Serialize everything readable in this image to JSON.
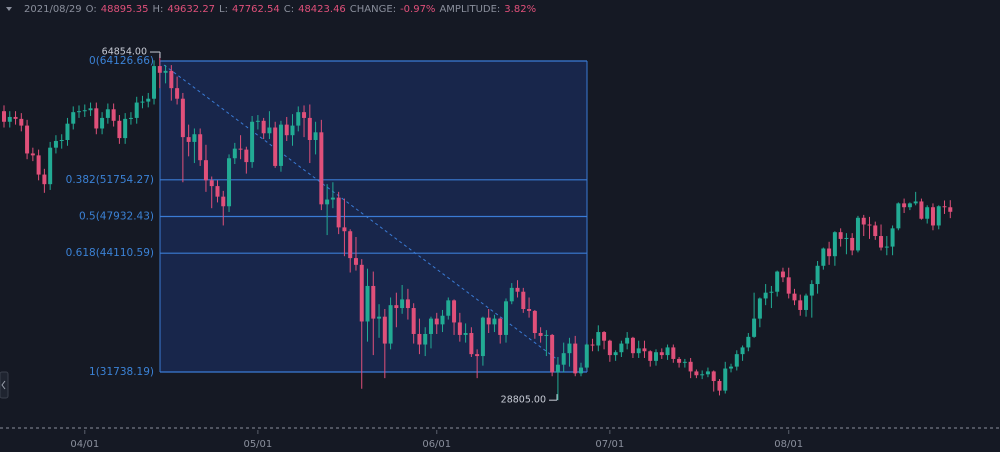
{
  "chart_data": {
    "type": "candlestick",
    "header": {
      "date": "2021/08/29",
      "items": [
        {
          "label": "O:",
          "value": "48895.35"
        },
        {
          "label": "H:",
          "value": "49632.27"
        },
        {
          "label": "L:",
          "value": "47762.54"
        },
        {
          "label": "C:",
          "value": "48423.46"
        },
        {
          "label": "CHANGE:",
          "value": "-0.97%"
        },
        {
          "label": "AMPLITUDE:",
          "value": "3.82%"
        }
      ]
    },
    "up_color": "#22ab94",
    "down_color": "#e0507a",
    "ylim": [
      26220,
      70480
    ],
    "xticks": [
      {
        "value": 14,
        "label": "04/01"
      },
      {
        "value": 44,
        "label": "05/01"
      },
      {
        "value": 75,
        "label": "06/01"
      },
      {
        "value": 105,
        "label": "07/01"
      },
      {
        "value": 136,
        "label": "08/01"
      }
    ],
    "fib_levels": [
      {
        "value": 64126.66,
        "label": "0(64126.66)"
      },
      {
        "value": 51754.27,
        "label": "0.382(51754.27)"
      },
      {
        "value": 47932.43,
        "label": "0.5(47932.43)"
      },
      {
        "value": 44110.59,
        "label": "0.618(44110.59)"
      },
      {
        "value": 31738.19,
        "label": "1(31738.19)"
      }
    ],
    "high_marker": {
      "value": 64854,
      "label": "64854.00"
    },
    "low_marker": {
      "value": 28805,
      "label": "28805.00"
    },
    "candles": [
      [
        58900,
        59500,
        57200,
        57800
      ],
      [
        57800,
        58900,
        57200,
        58300
      ],
      [
        58300,
        58900,
        57500,
        58100
      ],
      [
        58100,
        58700,
        56800,
        57400
      ],
      [
        57400,
        58000,
        53900,
        54500
      ],
      [
        54500,
        55100,
        53700,
        54300
      ],
      [
        54300,
        54900,
        51700,
        52300
      ],
      [
        52300,
        52900,
        50400,
        51300
      ],
      [
        51300,
        55700,
        50700,
        55100
      ],
      [
        55100,
        56400,
        54500,
        55800
      ],
      [
        55800,
        56500,
        55000,
        55900
      ],
      [
        55900,
        58200,
        55300,
        57600
      ],
      [
        57600,
        59400,
        57000,
        58800
      ],
      [
        58800,
        59500,
        58200,
        58900
      ],
      [
        58900,
        59600,
        58300,
        59000
      ],
      [
        59000,
        59800,
        58400,
        59200
      ],
      [
        59200,
        59800,
        56500,
        57100
      ],
      [
        57100,
        58800,
        56500,
        58200
      ],
      [
        58200,
        59700,
        57600,
        59100
      ],
      [
        59100,
        59700,
        57300,
        57900
      ],
      [
        57900,
        58500,
        55500,
        56100
      ],
      [
        56100,
        58700,
        55500,
        58100
      ],
      [
        58100,
        58800,
        57500,
        58200
      ],
      [
        58200,
        60400,
        57600,
        59800
      ],
      [
        59800,
        60500,
        59200,
        59900
      ],
      [
        59900,
        60800,
        59300,
        60200
      ],
      [
        60200,
        64200,
        59600,
        63600
      ],
      [
        63600,
        64854,
        61300,
        62900
      ],
      [
        62900,
        63700,
        61800,
        63100
      ],
      [
        63100,
        63700,
        60000,
        61300
      ],
      [
        61300,
        62500,
        59600,
        60200
      ],
      [
        60200,
        60800,
        51500,
        56200
      ],
      [
        56200,
        57500,
        54200,
        55700
      ],
      [
        55700,
        57100,
        53500,
        56500
      ],
      [
        56500,
        57100,
        53200,
        53800
      ],
      [
        53800,
        55400,
        50500,
        51700
      ],
      [
        51700,
        52100,
        48800,
        51100
      ],
      [
        51100,
        51700,
        49400,
        50000
      ],
      [
        50000,
        50600,
        47000,
        49000
      ],
      [
        49000,
        54400,
        48400,
        54000
      ],
      [
        54000,
        55600,
        53400,
        55000
      ],
      [
        55000,
        56400,
        53900,
        54900
      ],
      [
        54900,
        55200,
        52400,
        53600
      ],
      [
        53600,
        58400,
        53000,
        57800
      ],
      [
        57800,
        58500,
        57000,
        57900
      ],
      [
        57900,
        58200,
        56000,
        56600
      ],
      [
        56600,
        58900,
        56000,
        57200
      ],
      [
        57200,
        57800,
        53000,
        53200
      ],
      [
        53200,
        57900,
        52600,
        57500
      ],
      [
        57500,
        58300,
        55800,
        56400
      ],
      [
        56400,
        58600,
        55300,
        57400
      ],
      [
        57400,
        59400,
        56800,
        58800
      ],
      [
        58800,
        59500,
        56200,
        58200
      ],
      [
        58200,
        59600,
        53500,
        55900
      ],
      [
        55900,
        57800,
        54400,
        56700
      ],
      [
        56700,
        58000,
        48600,
        49200
      ],
      [
        49200,
        51300,
        46000,
        49700
      ],
      [
        49700,
        51500,
        48800,
        49900
      ],
      [
        49900,
        50500,
        46100,
        46800
      ],
      [
        46800,
        49800,
        43800,
        46400
      ],
      [
        46400,
        46600,
        42100,
        43600
      ],
      [
        43600,
        45800,
        42300,
        42900
      ],
      [
        42900,
        43500,
        30000,
        37000
      ],
      [
        37000,
        42500,
        34900,
        40700
      ],
      [
        40700,
        42200,
        33500,
        37300
      ],
      [
        37300,
        38800,
        35300,
        37500
      ],
      [
        37500,
        38300,
        31100,
        34700
      ],
      [
        34700,
        39500,
        34100,
        38700
      ],
      [
        38700,
        40000,
        36400,
        38400
      ],
      [
        38400,
        40800,
        37800,
        39300
      ],
      [
        39300,
        40400,
        37200,
        38400
      ],
      [
        38400,
        38900,
        34700,
        35700
      ],
      [
        35700,
        37300,
        33600,
        34600
      ],
      [
        34600,
        36400,
        33400,
        35700
      ],
      [
        35700,
        37500,
        34200,
        37300
      ],
      [
        37300,
        37900,
        35700,
        36700
      ],
      [
        36700,
        38200,
        35900,
        37600
      ],
      [
        37600,
        39500,
        37200,
        39200
      ],
      [
        39200,
        39300,
        35600,
        36900
      ],
      [
        36900,
        37900,
        34900,
        35600
      ],
      [
        35600,
        36800,
        34800,
        35800
      ],
      [
        35800,
        36400,
        33300,
        33600
      ],
      [
        33600,
        34100,
        31100,
        33400
      ],
      [
        33400,
        37500,
        32400,
        37400
      ],
      [
        37400,
        38300,
        35800,
        36700
      ],
      [
        36700,
        37700,
        35900,
        37300
      ],
      [
        37300,
        37400,
        34700,
        35600
      ],
      [
        35600,
        39400,
        34800,
        39100
      ],
      [
        39100,
        41000,
        38800,
        40500
      ],
      [
        40500,
        41300,
        39500,
        40100
      ],
      [
        40100,
        40500,
        37900,
        38300
      ],
      [
        38300,
        39500,
        37400,
        38100
      ],
      [
        38100,
        38200,
        35200,
        35800
      ],
      [
        35800,
        36400,
        34800,
        35500
      ],
      [
        35500,
        36100,
        33400,
        35600
      ],
      [
        35600,
        35700,
        31300,
        31700
      ],
      [
        31700,
        33300,
        28805,
        32500
      ],
      [
        32500,
        34800,
        31700,
        33700
      ],
      [
        33700,
        35300,
        32300,
        34700
      ],
      [
        34700,
        35500,
        31300,
        31600
      ],
      [
        31600,
        32700,
        31300,
        32200
      ],
      [
        32200,
        34700,
        32000,
        34600
      ],
      [
        34600,
        35200,
        33900,
        34500
      ],
      [
        34500,
        36600,
        33900,
        35900
      ],
      [
        35900,
        36000,
        34100,
        35000
      ],
      [
        35000,
        35100,
        32800,
        33500
      ],
      [
        33500,
        34000,
        32900,
        33800
      ],
      [
        33800,
        35000,
        33300,
        34700
      ],
      [
        34700,
        35900,
        34100,
        35300
      ],
      [
        35300,
        35400,
        33200,
        33700
      ],
      [
        33700,
        35000,
        33200,
        34200
      ],
      [
        34200,
        35000,
        33200,
        33900
      ],
      [
        33900,
        34000,
        32300,
        32900
      ],
      [
        32900,
        34100,
        32400,
        33800
      ],
      [
        33800,
        34200,
        33100,
        33500
      ],
      [
        33500,
        34600,
        33000,
        34300
      ],
      [
        34300,
        34600,
        32700,
        33100
      ],
      [
        33100,
        33300,
        32200,
        32700
      ],
      [
        32700,
        33100,
        32200,
        32800
      ],
      [
        32800,
        33200,
        31100,
        31800
      ],
      [
        31800,
        32000,
        31100,
        31400
      ],
      [
        31400,
        31900,
        31000,
        31500
      ],
      [
        31500,
        32200,
        31200,
        31800
      ],
      [
        31800,
        31900,
        29700,
        30800
      ],
      [
        30800,
        31000,
        29300,
        29800
      ],
      [
        29800,
        32800,
        29500,
        32100
      ],
      [
        32100,
        32600,
        31700,
        32300
      ],
      [
        32300,
        34000,
        31900,
        33600
      ],
      [
        33600,
        34500,
        32900,
        34300
      ],
      [
        34300,
        35800,
        33900,
        35400
      ],
      [
        35400,
        40000,
        35300,
        37300
      ],
      [
        37300,
        39500,
        36400,
        39400
      ],
      [
        39400,
        40900,
        38700,
        40000
      ],
      [
        40000,
        40700,
        38400,
        40100
      ],
      [
        40100,
        42300,
        39600,
        42200
      ],
      [
        42200,
        42600,
        41100,
        41600
      ],
      [
        41600,
        42600,
        39400,
        39900
      ],
      [
        39900,
        40400,
        38700,
        39200
      ],
      [
        39200,
        39800,
        37600,
        38200
      ],
      [
        38200,
        39900,
        37500,
        39700
      ],
      [
        39700,
        41300,
        37400,
        40900
      ],
      [
        40900,
        43300,
        39900,
        42800
      ],
      [
        42800,
        44700,
        42400,
        44600
      ],
      [
        44600,
        45300,
        42900,
        43800
      ],
      [
        43800,
        46400,
        42800,
        46300
      ],
      [
        46300,
        46700,
        44800,
        45600
      ],
      [
        45600,
        46200,
        44000,
        45700
      ],
      [
        45700,
        46200,
        43900,
        44400
      ],
      [
        44400,
        48000,
        44200,
        47800
      ],
      [
        47800,
        48100,
        45900,
        47100
      ],
      [
        47100,
        47900,
        45600,
        47000
      ],
      [
        47000,
        47400,
        45500,
        45900
      ],
      [
        45900,
        47100,
        44400,
        44700
      ],
      [
        44700,
        45900,
        43900,
        44800
      ],
      [
        44800,
        47000,
        43900,
        46700
      ],
      [
        46700,
        49400,
        46500,
        49300
      ],
      [
        49300,
        49800,
        48300,
        48900
      ],
      [
        48900,
        49400,
        48600,
        49300
      ],
      [
        49300,
        50500,
        49100,
        49500
      ],
      [
        49500,
        49800,
        47600,
        47700
      ],
      [
        47700,
        49100,
        47200,
        48900
      ],
      [
        48900,
        49300,
        46500,
        47000
      ],
      [
        47000,
        49100,
        46600,
        49000
      ],
      [
        49000,
        49600,
        48200,
        48895.35
      ],
      [
        48895.35,
        49632.27,
        47762.54,
        48423.46
      ]
    ]
  }
}
